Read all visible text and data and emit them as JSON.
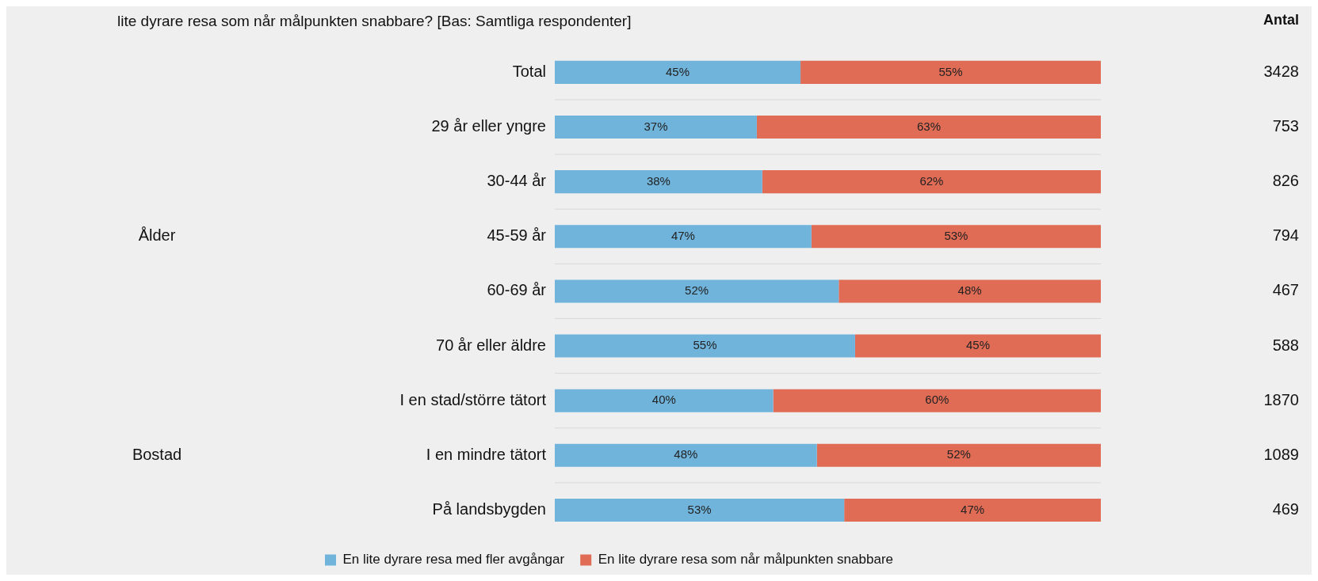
{
  "chart_data": {
    "type": "bar",
    "orientation": "horizontal",
    "stacked": true,
    "legend": "bottom",
    "grid": false,
    "title": "lite dyrare resa som når målpunkten snabbare? [Bas: Samtliga respondenter]",
    "categories": [
      "Total",
      "29 år eller yngre",
      "30-44 år",
      "45-59 år",
      "60-69 år",
      "70 år eller äldre",
      "I en stad/större tätort",
      "I en mindre tätort",
      "På landsbygden"
    ],
    "series": [
      {
        "name": "En lite dyrare resa med fler avgångar",
        "color": "#70b4dc",
        "values": [
          45,
          37,
          38,
          47,
          52,
          55,
          40,
          48,
          53
        ],
        "value_labels": [
          "45%",
          "37%",
          "38%",
          "47%",
          "52%",
          "55%",
          "40%",
          "48%",
          "53%"
        ]
      },
      {
        "name": "En lite dyrare resa som når målpunkten snabbare",
        "color": "#e06c55",
        "values": [
          55,
          63,
          62,
          53,
          48,
          45,
          60,
          52,
          47
        ],
        "value_labels": [
          "55%",
          "63%",
          "62%",
          "53%",
          "48%",
          "45%",
          "60%",
          "52%",
          "47%"
        ]
      }
    ],
    "annotations": [
      "Antal",
      "Ålder",
      "Bostad",
      "3428",
      "753",
      "826",
      "794",
      "467",
      "588",
      "1870",
      "1089",
      "469"
    ]
  }
}
